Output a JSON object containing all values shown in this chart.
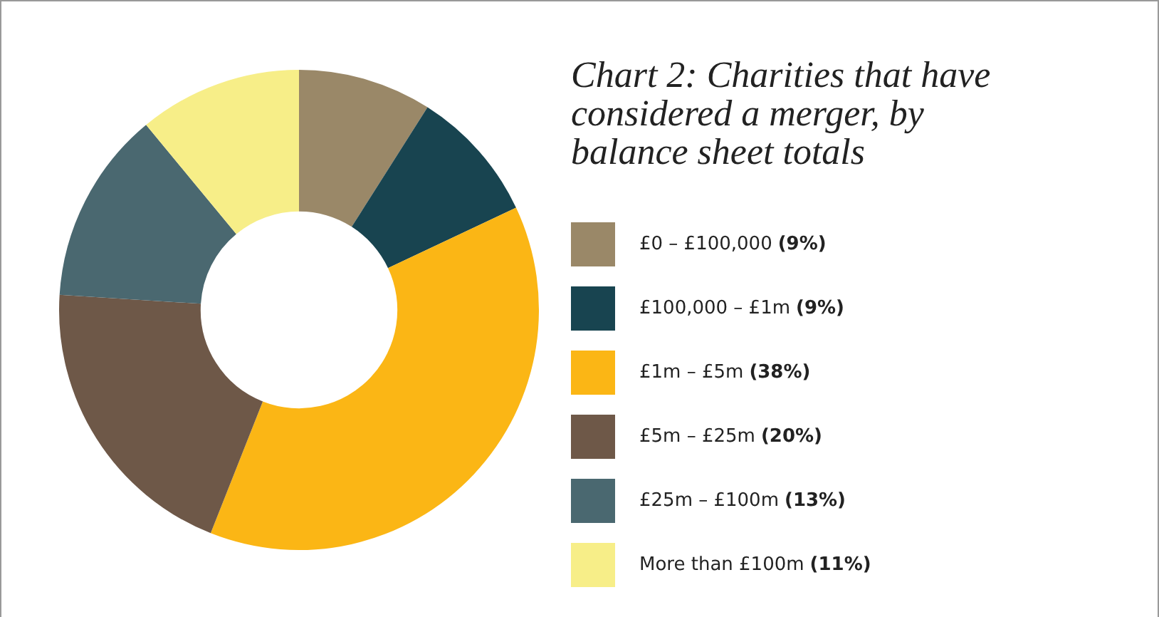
{
  "chart_data": {
    "type": "donut",
    "title": "Chart 2: Charities that have considered a merger, by balance sheet totals",
    "categories": [
      "£0 – £100,000",
      "£100,000 – £1m",
      "£1m – £5m",
      "£5m – £25m",
      "£25m – £100m",
      "More than £100m"
    ],
    "values": [
      9,
      9,
      38,
      20,
      13,
      11
    ],
    "value_labels": [
      "(9%)",
      "(9%)",
      "(38%)",
      "(20%)",
      "(13%)",
      "(11%)"
    ],
    "colors": [
      "#9a8868",
      "#184450",
      "#fbb615",
      "#6e5848",
      "#4a6870",
      "#f7ee88"
    ],
    "legend": "right"
  }
}
